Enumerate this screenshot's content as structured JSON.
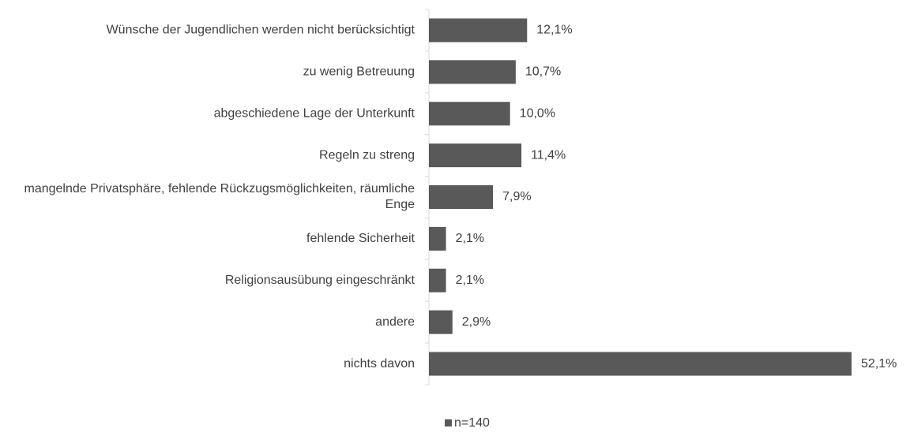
{
  "chart_data": {
    "type": "bar",
    "orientation": "horizontal",
    "categories": [
      "Wünsche der Jugendlichen werden nicht berücksichtigt",
      "zu wenig Betreuung",
      "abgeschiedene Lage der Unterkunft",
      "Regeln zu streng",
      "mangelnde Privatsphäre, fehlende Rückzugsmöglichkeiten, räumliche Enge",
      "fehlende Sicherheit",
      "Religionsausübung eingeschränkt",
      "andere",
      "nichts davon"
    ],
    "series": [
      {
        "name": "n=140",
        "color": "#595959",
        "values": [
          12.1,
          10.7,
          10.0,
          11.4,
          7.9,
          2.1,
          2.1,
          2.9,
          52.1
        ],
        "value_labels": [
          "12,1%",
          "10,7%",
          "10,0%",
          "11,4%",
          "7,9%",
          "2,1%",
          "2,1%",
          "2,9%",
          "52,1%"
        ]
      }
    ],
    "legend": "bottom"
  }
}
